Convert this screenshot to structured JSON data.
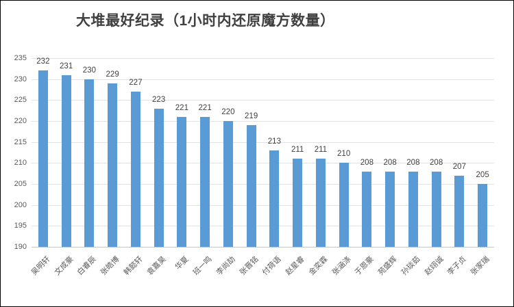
{
  "window": {
    "background": "#FFFFFF",
    "border_color": "#000000"
  },
  "chart_data": {
    "type": "bar",
    "title": "大堆最好纪录（1小时内还原魔方数量）",
    "categories": [
      "吴明轩",
      "文成豪",
      "白睿辰",
      "张皓博",
      "韩懿轩",
      "袁嘉昊",
      "华夏",
      "班一鸣",
      "李尚劼",
      "张晋铭",
      "付荷语",
      "赵星睿",
      "金奕霖",
      "张涵涤",
      "于恩豪",
      "苑盛辉",
      "孙琰茹",
      "赵翊诚",
      "李子贞",
      "张家瑞"
    ],
    "values": [
      232,
      231,
      230,
      229,
      227,
      223,
      221,
      221,
      220,
      219,
      213,
      211,
      211,
      210,
      208,
      208,
      208,
      208,
      207,
      205
    ],
    "xlabel": "",
    "ylabel": "",
    "ylim": [
      190,
      235
    ],
    "ytick_step": 5,
    "yticks": [
      235,
      230,
      225,
      220,
      215,
      210,
      205,
      200,
      195,
      190
    ],
    "grid": true,
    "legend": false,
    "data_labels": true,
    "bar_color": "#5B9BD5",
    "grid_color": "#E2E2E2",
    "axis_color": "#C6C6C6",
    "title_color": "#404040",
    "value_label_color": "#3F3F3F",
    "tick_label_color": "#595959",
    "category_label_color": "#595959"
  }
}
